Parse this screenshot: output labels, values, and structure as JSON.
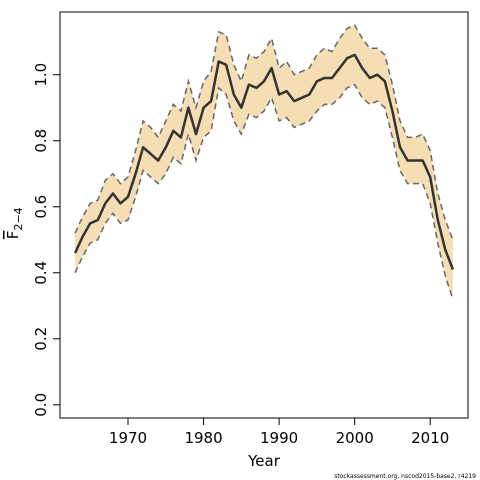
{
  "chart_data": {
    "type": "line",
    "xlabel": "Year",
    "ylabel": "F",
    "ylabel_subscript": "2−4",
    "x_ticks": [
      1970,
      1980,
      1990,
      2000,
      2010
    ],
    "x_tick_labels": [
      "1970",
      "1980",
      "1990",
      "2000",
      "2010"
    ],
    "y_ticks": [
      0.0,
      0.2,
      0.4,
      0.6,
      0.8,
      1.0
    ],
    "y_tick_labels": [
      "0.0",
      "0.2",
      "0.4",
      "0.6",
      "0.8",
      "1.0"
    ],
    "xlim": [
      1961,
      2015
    ],
    "ylim": [
      -0.04,
      1.19
    ],
    "grid": false,
    "band_color": "#f5deb3",
    "line_color": "#333333",
    "bound_color": "#666666",
    "series": [
      {
        "x": [
          1963,
          1964,
          1965,
          1966,
          1967,
          1968,
          1969,
          1970,
          1971,
          1972,
          1973,
          1974,
          1975,
          1976,
          1977,
          1978,
          1979,
          1980,
          1981,
          1982,
          1983,
          1984,
          1985,
          1986,
          1987,
          1988,
          1989,
          1990,
          1991,
          1992,
          1993,
          1994,
          1995,
          1996,
          1997,
          1998,
          1999,
          2000,
          2001,
          2002,
          2003,
          2004,
          2005,
          2006,
          2007,
          2008,
          2009,
          2010,
          2011,
          2012,
          2013
        ],
        "values": [
          0.46,
          0.51,
          0.55,
          0.56,
          0.61,
          0.64,
          0.61,
          0.63,
          0.7,
          0.78,
          0.76,
          0.74,
          0.78,
          0.83,
          0.81,
          0.9,
          0.82,
          0.9,
          0.92,
          1.04,
          1.03,
          0.94,
          0.9,
          0.97,
          0.96,
          0.98,
          1.02,
          0.94,
          0.95,
          0.92,
          0.93,
          0.94,
          0.98,
          0.99,
          0.99,
          1.02,
          1.05,
          1.06,
          1.02,
          0.99,
          1.0,
          0.98,
          0.89,
          0.78,
          0.74,
          0.74,
          0.74,
          0.69,
          0.56,
          0.47,
          0.41
        ],
        "lower": [
          0.4,
          0.45,
          0.49,
          0.5,
          0.55,
          0.58,
          0.55,
          0.56,
          0.63,
          0.71,
          0.69,
          0.67,
          0.7,
          0.75,
          0.73,
          0.82,
          0.74,
          0.81,
          0.83,
          0.96,
          0.94,
          0.86,
          0.82,
          0.88,
          0.87,
          0.89,
          0.93,
          0.86,
          0.87,
          0.84,
          0.85,
          0.86,
          0.89,
          0.91,
          0.91,
          0.93,
          0.96,
          0.97,
          0.93,
          0.91,
          0.92,
          0.9,
          0.81,
          0.71,
          0.67,
          0.67,
          0.67,
          0.61,
          0.49,
          0.39,
          0.32
        ],
        "upper": [
          0.52,
          0.57,
          0.61,
          0.62,
          0.68,
          0.7,
          0.67,
          0.69,
          0.77,
          0.86,
          0.84,
          0.81,
          0.86,
          0.91,
          0.89,
          0.98,
          0.9,
          0.98,
          1.01,
          1.13,
          1.12,
          1.03,
          0.98,
          1.06,
          1.05,
          1.07,
          1.11,
          1.02,
          1.04,
          1.0,
          1.01,
          1.02,
          1.06,
          1.08,
          1.07,
          1.11,
          1.14,
          1.15,
          1.11,
          1.08,
          1.08,
          1.06,
          0.97,
          0.86,
          0.81,
          0.81,
          0.82,
          0.77,
          0.64,
          0.56,
          0.5
        ]
      }
    ]
  },
  "credit": "stockassessment.org, nscod2015-base2, r4219"
}
